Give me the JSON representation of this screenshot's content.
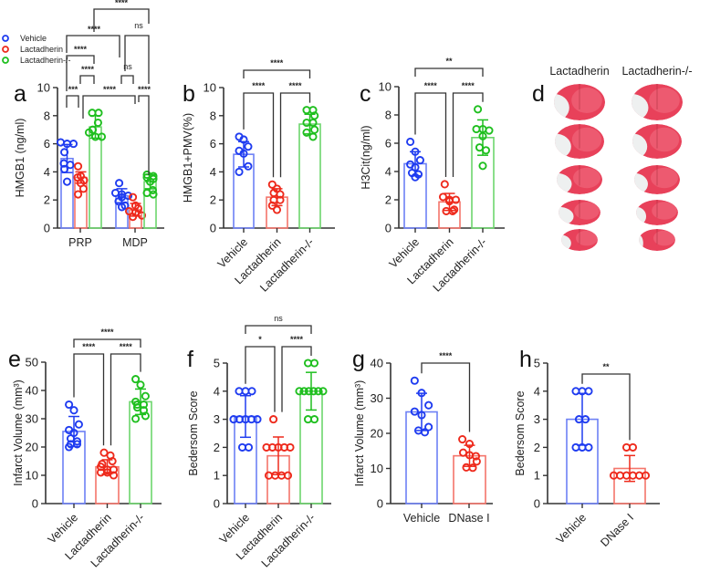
{
  "colors": {
    "vehicle": "#1f3cf0",
    "lactadherin": "#ee2a1c",
    "knockout": "#1fbf1f",
    "dnase": "#ee2a1c",
    "axis": "#333333"
  },
  "brain_panel": {
    "letter": "d",
    "columns": [
      "Lactadherin",
      "Lactadherin-/-"
    ],
    "slices_per_column": 5
  },
  "chart_data": [
    {
      "panel": "a",
      "type": "bar",
      "title": "",
      "xlabel": "",
      "ylabel": "HMGB1 (ng/ml)",
      "ylim": [
        0,
        10
      ],
      "yticks": [
        0,
        2,
        4,
        6,
        8,
        10
      ],
      "grid": false,
      "categories": [
        "PRP",
        "MDP"
      ],
      "legend": {
        "placement": "top-left",
        "entries": [
          "Vehicle",
          "Lactadherin",
          "Lactadherin-/-"
        ]
      },
      "bars": [
        {
          "category": "PRP",
          "series": "Vehicle",
          "mean": 4.95,
          "sd": 1.0,
          "points": [
            6.1,
            6.0,
            6.0,
            5.4,
            4.6,
            4.5,
            4.2,
            3.3
          ]
        },
        {
          "category": "PRP",
          "series": "Lactadherin",
          "mean": 3.6,
          "sd": 0.4,
          "points": [
            4.4,
            3.7,
            3.6,
            3.4,
            3.2,
            2.8,
            2.4
          ]
        },
        {
          "category": "PRP",
          "series": "Lactadherin-/-",
          "mean": 7.2,
          "sd": 0.8,
          "points": [
            8.2,
            8.2,
            7.5,
            7.0,
            6.8,
            6.5,
            6.5
          ]
        },
        {
          "category": "MDP",
          "series": "Vehicle",
          "mean": 2.3,
          "sd": 0.5,
          "points": [
            3.2,
            2.5,
            2.4,
            2.3,
            2.2,
            1.9,
            1.6,
            1.5
          ]
        },
        {
          "category": "MDP",
          "series": "Lactadherin",
          "mean": 1.3,
          "sd": 0.45,
          "points": [
            2.2,
            1.6,
            1.4,
            1.2,
            1.1,
            0.9,
            0.8
          ]
        },
        {
          "category": "MDP",
          "series": "Lactadherin-/-",
          "mean": 3.3,
          "sd": 0.5,
          "points": [
            3.8,
            3.7,
            3.6,
            3.5,
            3.3,
            2.7,
            2.5,
            2.4
          ]
        }
      ],
      "comparisons": [
        {
          "groups": [
            "PRP Vehicle",
            "PRP Lactadherin"
          ],
          "label": "***"
        },
        {
          "groups": [
            "PRP Lactadherin",
            "MDP Lactadherin"
          ],
          "label": "****"
        },
        {
          "groups": [
            "MDP Lactadherin",
            "MDP Lactadherin-/-"
          ],
          "label": "****"
        },
        {
          "groups": [
            "PRP Lactadherin",
            "PRP Lactadherin-/-"
          ],
          "label": "****"
        },
        {
          "groups": [
            "MDP Vehicle",
            "MDP Lactadherin"
          ],
          "label": "ns"
        },
        {
          "groups": [
            "PRP Vehicle",
            "PRP Lactadherin-/-"
          ],
          "label": "****"
        },
        {
          "groups": [
            "PRP Vehicle",
            "MDP Vehicle"
          ],
          "label": "****"
        },
        {
          "groups": [
            "MDP Vehicle",
            "MDP Lactadherin-/-"
          ],
          "label": "ns"
        },
        {
          "groups": [
            "PRP Lactadherin-/-",
            "MDP Lactadherin-/-"
          ],
          "label": "****"
        }
      ]
    },
    {
      "panel": "b",
      "type": "bar",
      "title": "",
      "xlabel": "",
      "ylabel": "HMGB1+PMV(%)",
      "ylim": [
        0,
        10
      ],
      "yticks": [
        0,
        2,
        4,
        6,
        8,
        10
      ],
      "grid": false,
      "categories": [
        "Vehicle",
        "Lactadherin",
        "Lactadherin-/-"
      ],
      "bars": [
        {
          "series": "Vehicle",
          "mean": 5.25,
          "sd": 0.9,
          "points": [
            6.5,
            6.3,
            5.8,
            5.5,
            5.3,
            4.4,
            4.0
          ]
        },
        {
          "series": "Lactadherin",
          "mean": 2.2,
          "sd": 0.6,
          "points": [
            3.1,
            2.8,
            2.5,
            2.4,
            2.0,
            2.0,
            1.6,
            1.3
          ]
        },
        {
          "series": "Lactadherin-/-",
          "mean": 7.4,
          "sd": 0.7,
          "points": [
            8.4,
            8.4,
            8.0,
            7.5,
            7.5,
            7.0,
            6.8,
            6.5
          ]
        }
      ],
      "comparisons": [
        {
          "groups": [
            0,
            1
          ],
          "level": 1,
          "label": "****"
        },
        {
          "groups": [
            1,
            2
          ],
          "level": 1,
          "label": "****"
        },
        {
          "groups": [
            0,
            2
          ],
          "level": 2,
          "label": "****"
        }
      ]
    },
    {
      "panel": "c",
      "type": "bar",
      "title": "",
      "xlabel": "",
      "ylabel": "H3Cit(ng/ml)",
      "ylim": [
        0,
        10
      ],
      "yticks": [
        0,
        2,
        4,
        6,
        8,
        10
      ],
      "grid": false,
      "categories": [
        "Vehicle",
        "Lactadherin",
        "Lactadherin-/-"
      ],
      "bars": [
        {
          "series": "Vehicle",
          "mean": 4.55,
          "sd": 0.85,
          "points": [
            6.1,
            5.4,
            4.8,
            4.5,
            4.3,
            3.9,
            3.8,
            3.6
          ]
        },
        {
          "series": "Lactadherin",
          "mean": 1.85,
          "sd": 0.6,
          "points": [
            3.1,
            2.2,
            2.0,
            2.0,
            1.9,
            1.3,
            1.2,
            1.2
          ]
        },
        {
          "series": "Lactadherin-/-",
          "mean": 6.4,
          "sd": 1.25,
          "points": [
            8.4,
            7.0,
            7.0,
            6.9,
            6.5,
            5.7,
            5.5,
            4.4
          ]
        }
      ],
      "comparisons": [
        {
          "groups": [
            0,
            1
          ],
          "level": 1,
          "label": "****"
        },
        {
          "groups": [
            1,
            2
          ],
          "level": 1,
          "label": "****"
        },
        {
          "groups": [
            0,
            2
          ],
          "level": 2,
          "label": "**"
        }
      ]
    },
    {
      "panel": "e",
      "type": "bar",
      "title": "",
      "xlabel": "",
      "ylabel": "Infarct Volume (mm³)",
      "ylim": [
        0,
        50
      ],
      "yticks": [
        0,
        10,
        20,
        30,
        40,
        50
      ],
      "grid": false,
      "categories": [
        "Vehicle",
        "Lactadherin",
        "Lactadherin-/-"
      ],
      "bars": [
        {
          "series": "Vehicle",
          "mean": 25.5,
          "sd": 5.3,
          "points": [
            35,
            33,
            28,
            26,
            25,
            23,
            22,
            21,
            21,
            20
          ]
        },
        {
          "series": "Lactadherin",
          "mean": 13,
          "sd": 2.5,
          "points": [
            18,
            17,
            15,
            14,
            13,
            12,
            12,
            11,
            11,
            10
          ]
        },
        {
          "series": "Lactadherin-/-",
          "mean": 36,
          "sd": 4.5,
          "points": [
            44,
            42,
            38,
            36,
            35,
            35,
            34,
            33,
            31,
            30
          ]
        }
      ],
      "comparisons": [
        {
          "groups": [
            0,
            1
          ],
          "level": 1,
          "label": "****"
        },
        {
          "groups": [
            1,
            2
          ],
          "level": 1,
          "label": "****"
        },
        {
          "groups": [
            0,
            2
          ],
          "level": 2,
          "label": "****"
        }
      ]
    },
    {
      "panel": "f",
      "type": "bar",
      "title": "",
      "xlabel": "",
      "ylabel": "Bedersom Score",
      "ylim": [
        0,
        5
      ],
      "yticks": [
        0,
        1,
        2,
        3,
        4,
        5
      ],
      "grid": false,
      "categories": [
        "Vehicle",
        "Lactadherin",
        "Lactadherin-/-"
      ],
      "bars": [
        {
          "series": "Vehicle",
          "mean": 3.1,
          "sd": 0.74,
          "points": [
            4,
            4,
            4,
            3,
            3,
            3,
            3,
            3,
            2,
            2
          ]
        },
        {
          "series": "Lactadherin",
          "mean": 1.7,
          "sd": 0.67,
          "points": [
            3,
            2,
            2,
            2,
            2,
            2,
            1,
            1,
            1,
            1
          ]
        },
        {
          "series": "Lactadherin-/-",
          "mean": 4.0,
          "sd": 0.67,
          "points": [
            5,
            5,
            4,
            4,
            4,
            4,
            4,
            4,
            3,
            3
          ]
        }
      ],
      "comparisons": [
        {
          "groups": [
            0,
            1
          ],
          "level": 1,
          "label": "*"
        },
        {
          "groups": [
            1,
            2
          ],
          "level": 1,
          "label": "****"
        },
        {
          "groups": [
            0,
            2
          ],
          "level": 2,
          "label": "ns"
        }
      ]
    },
    {
      "panel": "g",
      "type": "bar",
      "title": "",
      "xlabel": "",
      "ylabel": "Infarct Volume (mm³)",
      "ylim": [
        0,
        40
      ],
      "yticks": [
        0,
        10,
        20,
        30,
        40
      ],
      "grid": false,
      "categories": [
        "Vehicle",
        "DNase I"
      ],
      "bars": [
        {
          "series": "Vehicle",
          "mean": 26.1,
          "sd": 5.3,
          "points": [
            35,
            31.5,
            28,
            26.2,
            25.2,
            21.8,
            20.8,
            20.3
          ]
        },
        {
          "series": "DNase I",
          "mean": 13.6,
          "sd": 3.0,
          "points": [
            18.3,
            17,
            14.5,
            13.8,
            13.5,
            12,
            10.3,
            10.2
          ]
        }
      ],
      "comparisons": [
        {
          "groups": [
            0,
            1
          ],
          "level": 1,
          "label": "****"
        }
      ]
    },
    {
      "panel": "h",
      "type": "bar",
      "title": "",
      "xlabel": "",
      "ylabel": "Bedersom Score",
      "ylim": [
        0,
        5
      ],
      "yticks": [
        0,
        1,
        2,
        3,
        4,
        5
      ],
      "grid": false,
      "categories": [
        "Vehicle",
        "DNase I"
      ],
      "bars": [
        {
          "series": "Vehicle",
          "mean": 3.0,
          "sd": 0.92,
          "points": [
            4,
            4,
            4,
            3,
            3,
            2,
            2,
            2
          ]
        },
        {
          "series": "DNase I",
          "mean": 1.25,
          "sd": 0.46,
          "points": [
            2,
            2,
            1,
            1,
            1,
            1,
            1,
            1
          ]
        }
      ],
      "comparisons": [
        {
          "groups": [
            0,
            1
          ],
          "level": 1,
          "label": "**"
        }
      ]
    }
  ]
}
